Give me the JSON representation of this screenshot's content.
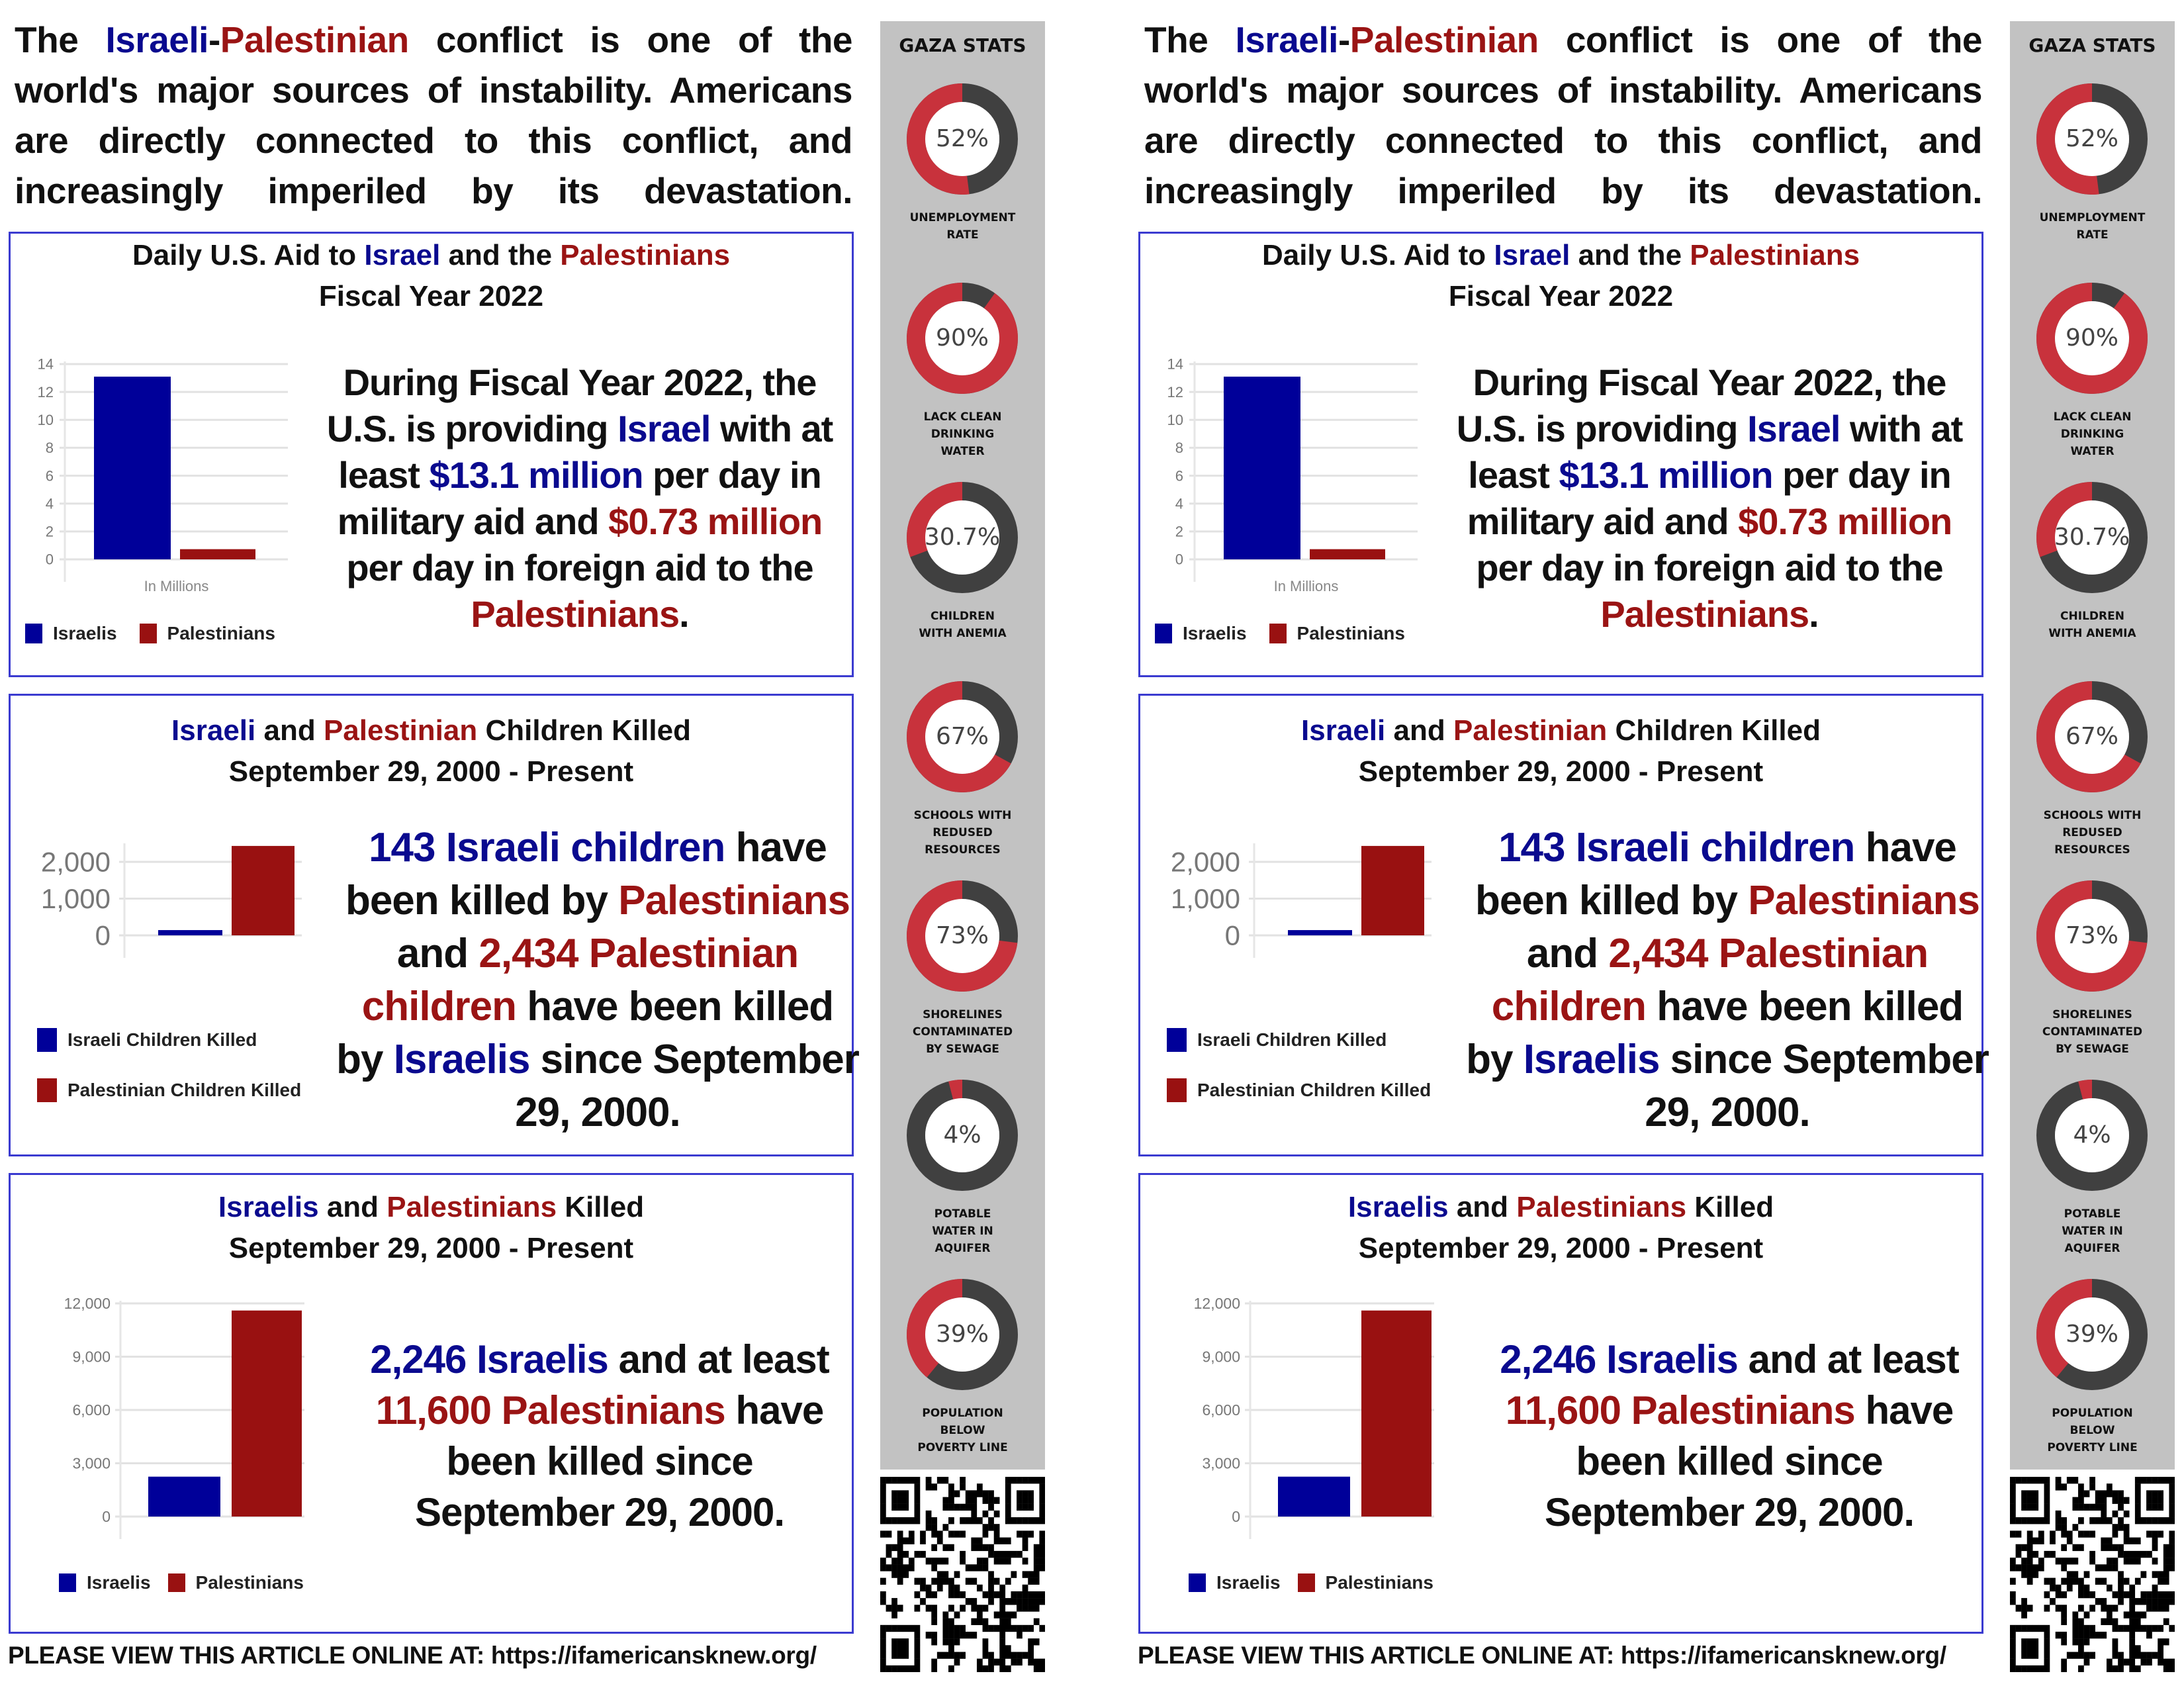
{
  "intro": [
    {
      "t": "The "
    },
    {
      "t": "Israeli",
      "c": "blue"
    },
    {
      "t": "-"
    },
    {
      "t": "Palestinian",
      "c": "red"
    },
    {
      "t": " conflict is one of the world's major sources of instability. Americans are directly connected to this conflict, and increasingly imperiled by its devastation."
    }
  ],
  "colors": {
    "israel": "#000099",
    "palestine": "#991111",
    "donut_fill": "#c8323c",
    "donut_rest": "#404040",
    "border": "#3b3bd0",
    "sidebar": "#c2c2c2"
  },
  "aid": {
    "title1": [
      {
        "t": "Daily U.S. Aid to "
      },
      {
        "t": "Israel",
        "c": "blue"
      },
      {
        "t": " and the "
      },
      {
        "t": "Palestinians",
        "c": "red"
      }
    ],
    "title2": [
      {
        "t": "Fiscal Year 2022"
      }
    ],
    "text": [
      {
        "t": "During Fiscal Year 2022, the U.S. is providing "
      },
      {
        "t": "Israel",
        "c": "blue"
      },
      {
        "t": " with at least "
      },
      {
        "t": "$13.1 million",
        "c": "blue"
      },
      {
        "t": " per day in military aid and "
      },
      {
        "t": "$0.73 million",
        "c": "red"
      },
      {
        "t": " per day in foreign aid to the "
      },
      {
        "t": "Palestinians",
        "c": "red"
      },
      {
        "t": "."
      }
    ],
    "legend": [
      "Israelis",
      "Palestinians"
    ]
  },
  "children": {
    "title1": [
      {
        "t": "Israeli",
        "c": "blue"
      },
      {
        "t": " and "
      },
      {
        "t": "Palestinian",
        "c": "red"
      },
      {
        "t": " Children Killed"
      }
    ],
    "title2": [
      {
        "t": "September 29, 2000 - Present"
      }
    ],
    "text": [
      {
        "t": "143 Israeli children",
        "c": "blue"
      },
      {
        "t": " have been killed by "
      },
      {
        "t": "Palestinians",
        "c": "red"
      },
      {
        "t": " and "
      },
      {
        "t": "2,434 Palestinian children",
        "c": "red"
      },
      {
        "t": " have been killed by "
      },
      {
        "t": "Israelis",
        "c": "blue"
      },
      {
        "t": " since September 29, 2000."
      }
    ],
    "legend": [
      "Israeli Children Killed",
      "Palestinian Children Killed"
    ]
  },
  "killed": {
    "title1": [
      {
        "t": "Israelis",
        "c": "blue"
      },
      {
        "t": " and "
      },
      {
        "t": "Palestinians",
        "c": "red"
      },
      {
        "t": " Killed"
      }
    ],
    "title2": [
      {
        "t": "September 29, 2000 - Present"
      }
    ],
    "text": [
      {
        "t": "2,246 Israelis",
        "c": "blue"
      },
      {
        "t": " and at least "
      },
      {
        "t": "11,600 Palestinians",
        "c": "red"
      },
      {
        "t": " have been killed since September 29, 2000."
      }
    ],
    "legend": [
      "Israelis",
      "Palestinians"
    ]
  },
  "chart_data": [
    {
      "type": "bar",
      "xlabel": "In Millions",
      "categories": [
        "Israelis",
        "Palestinians"
      ],
      "values": [
        13.1,
        0.73
      ],
      "ylim": [
        0,
        14
      ],
      "yticks": [
        "0",
        "2",
        "4",
        "6",
        "8",
        "10",
        "12",
        "14"
      ],
      "tick_values": [
        0,
        2,
        4,
        6,
        8,
        10,
        12,
        14
      ],
      "grid": true,
      "legend": "bottom"
    },
    {
      "type": "bar",
      "xlabel": "",
      "categories": [
        "Israeli Children Killed",
        "Palestinian Children Killed"
      ],
      "values": [
        143,
        2434
      ],
      "ylim": [
        0,
        2500
      ],
      "yticks": [
        "0",
        "1,000",
        "2,000"
      ],
      "tick_values": [
        0,
        1000,
        2000
      ],
      "grid": true,
      "legend": "bottom"
    },
    {
      "type": "bar",
      "xlabel": "",
      "categories": [
        "Israelis",
        "Palestinians"
      ],
      "values": [
        2246,
        11600
      ],
      "ylim": [
        0,
        12000
      ],
      "yticks": [
        "0",
        "3,000",
        "6,000",
        "9,000",
        "12,000"
      ],
      "tick_values": [
        0,
        3000,
        6000,
        9000,
        12000
      ],
      "grid": true,
      "legend": "bottom"
    }
  ],
  "sidebar": {
    "title": "GAZA STATS",
    "stats": [
      {
        "value": "52%",
        "fraction": 0.52,
        "label": "UNEMPLOYMENT\nRATE"
      },
      {
        "value": "90%",
        "fraction": 0.9,
        "label": "LACK CLEAN\nDRINKING\nWATER"
      },
      {
        "value": "30.7%",
        "fraction": 0.307,
        "label": "CHILDREN\nWITH ANEMIA"
      },
      {
        "value": "67%",
        "fraction": 0.67,
        "label": "SCHOOLS WITH\nREDUSED\nRESOURCES"
      },
      {
        "value": "73%",
        "fraction": 0.73,
        "label": "SHORELINES\nCONTAMINATED\nBY SEWAGE"
      },
      {
        "value": "4%",
        "fraction": 0.04,
        "label": "POTABLE\nWATER IN\nAQUIFER"
      },
      {
        "value": "39%",
        "fraction": 0.39,
        "label": "POPULATION\nBELOW\nPOVERTY LINE"
      }
    ]
  },
  "footer": "PLEASE VIEW THIS ARTICLE ONLINE AT: https://ifamericansknew.org/"
}
